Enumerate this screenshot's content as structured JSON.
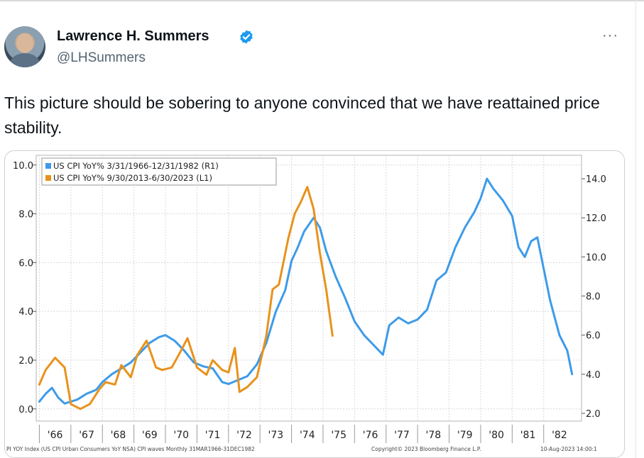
{
  "tweet": {
    "author_name": "Lawrence H. Summers",
    "handle": "@LHSummers",
    "more_label": "···",
    "text": "This picture should be sobering to anyone convinced that we have reattained price stability.",
    "verified_color": "#1d9bf0"
  },
  "chart_data": {
    "type": "line",
    "legend_position": "top-left",
    "grid": true,
    "series": [
      {
        "name": "US CPI YoY% 3/31/1966-12/31/1982 (R1)",
        "axis": "right",
        "color": "#3d9be9",
        "x": [
          1966.0,
          1966.2,
          1966.4,
          1966.6,
          1966.8,
          1967.0,
          1967.2,
          1967.5,
          1967.8,
          1968.0,
          1968.3,
          1968.6,
          1968.9,
          1969.2,
          1969.5,
          1969.8,
          1970.0,
          1970.3,
          1970.6,
          1970.9,
          1971.2,
          1971.5,
          1971.8,
          1972.0,
          1972.3,
          1972.6,
          1972.9,
          1973.2,
          1973.5,
          1973.8,
          1974.0,
          1974.2,
          1974.4,
          1974.7,
          1974.9,
          1975.1,
          1975.4,
          1975.7,
          1976.0,
          1976.3,
          1976.6,
          1976.9,
          1977.1,
          1977.4,
          1977.7,
          1978.0,
          1978.3,
          1978.6,
          1978.9,
          1979.2,
          1979.5,
          1979.8,
          1980.0,
          1980.2,
          1980.4,
          1980.7,
          1981.0,
          1981.2,
          1981.4,
          1981.6,
          1981.8,
          1982.0,
          1982.2,
          1982.5,
          1982.75,
          1982.9
        ],
        "values": [
          2.6,
          3.0,
          3.3,
          2.8,
          2.5,
          2.6,
          2.7,
          3.0,
          3.2,
          3.6,
          4.0,
          4.3,
          4.6,
          5.1,
          5.6,
          5.9,
          6.0,
          5.7,
          5.2,
          4.6,
          4.4,
          4.3,
          3.6,
          3.5,
          3.7,
          3.9,
          4.5,
          5.6,
          7.2,
          8.3,
          9.8,
          10.5,
          11.3,
          12.0,
          11.5,
          10.3,
          9.0,
          7.9,
          6.7,
          6.0,
          5.5,
          5.0,
          6.5,
          6.9,
          6.6,
          6.8,
          7.3,
          8.8,
          9.2,
          10.5,
          11.5,
          12.3,
          13.0,
          14.0,
          13.5,
          12.9,
          12.1,
          10.5,
          10.0,
          10.8,
          11.0,
          9.4,
          7.8,
          6.0,
          5.2,
          4.0
        ]
      },
      {
        "name": "US CPI YoY% 9/30/2013-6/30/2023 (L1)",
        "axis": "left",
        "color": "#e8921c",
        "x": [
          1966.0,
          1966.2,
          1966.5,
          1966.8,
          1967.0,
          1967.3,
          1967.6,
          1967.9,
          1968.1,
          1968.4,
          1968.6,
          1968.9,
          1969.1,
          1969.4,
          1969.7,
          1969.9,
          1970.2,
          1970.5,
          1970.7,
          1971.0,
          1971.3,
          1971.5,
          1971.8,
          1972.0,
          1972.2,
          1972.35,
          1972.6,
          1972.9,
          1973.2,
          1973.4,
          1973.6,
          1973.9,
          1974.1,
          1974.3,
          1974.5,
          1974.7,
          1974.9,
          1975.1,
          1975.3
        ],
        "values": [
          1.0,
          1.6,
          2.1,
          1.7,
          0.2,
          0.0,
          0.2,
          0.8,
          1.1,
          1.0,
          1.8,
          1.3,
          2.2,
          2.8,
          1.7,
          1.6,
          1.7,
          2.4,
          2.9,
          1.7,
          1.4,
          2.0,
          1.6,
          1.5,
          2.5,
          0.7,
          0.9,
          1.3,
          3.0,
          4.9,
          5.1,
          7.0,
          8.0,
          8.5,
          9.1,
          8.2,
          6.4,
          4.9,
          3.0
        ]
      }
    ],
    "left_axis": {
      "ticks": [
        "0.0",
        "2.0",
        "4.0",
        "6.0",
        "8.0",
        "10.0"
      ],
      "range": [
        -0.5,
        10.4
      ]
    },
    "right_axis": {
      "ticks": [
        "2.0",
        "4.0",
        "6.0",
        "8.0",
        "10.0",
        "12.0",
        "14.0"
      ],
      "range": [
        1.6,
        15.2
      ]
    },
    "x_axis": {
      "ticks": [
        "'66",
        "'67",
        "'68",
        "'69",
        "'70",
        "'71",
        "'72",
        "'73",
        "'74",
        "'75",
        "'76",
        "'77",
        "'78",
        "'79",
        "'80",
        "'81",
        "'82"
      ],
      "range": [
        1965.9,
        1983.2
      ]
    },
    "footer_source": "PI YOY Index (US CPI Urban Consumers YoY NSA) CPI waves  Monthly 31MAR1966-31DEC1982",
    "footer_copyright": "Copyright© 2023 Bloomberg Finance L.P.",
    "footer_date": "10-Aug-2023 14:00:1"
  }
}
